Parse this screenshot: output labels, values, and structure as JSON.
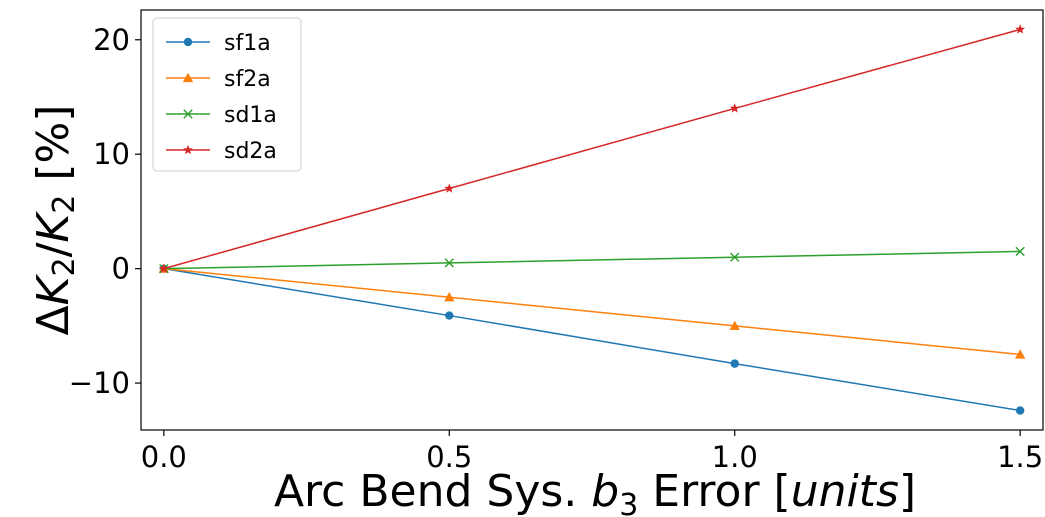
{
  "chart_data": {
    "type": "line",
    "x": [
      0.0,
      0.5,
      1.0,
      1.5
    ],
    "series": [
      {
        "name": "sf1a",
        "color": "#1f77b4",
        "marker": "circle",
        "values": [
          0.0,
          -4.1,
          -8.3,
          -12.4
        ]
      },
      {
        "name": "sf2a",
        "color": "#ff7f0e",
        "marker": "triangle",
        "values": [
          0.0,
          -2.5,
          -5.0,
          -7.5
        ]
      },
      {
        "name": "sd1a",
        "color": "#2ca02c",
        "marker": "x",
        "values": [
          0.0,
          0.5,
          1.0,
          1.5
        ]
      },
      {
        "name": "sd2a",
        "color": "#d62728",
        "marker": "star",
        "values": [
          0.0,
          7.0,
          14.0,
          20.9
        ]
      }
    ],
    "xlim": [
      -0.04,
      1.54
    ],
    "ylim": [
      -14.1,
      22.6
    ],
    "xticks": [
      0.0,
      0.5,
      1.0,
      1.5
    ],
    "xtick_labels": [
      "0.0",
      "0.5",
      "1.0",
      "1.5"
    ],
    "yticks": [
      -10,
      0,
      10,
      20
    ],
    "ytick_labels": [
      "−10",
      "0",
      "10",
      "20"
    ],
    "xlabel": {
      "prefix": "Arc Bend Sys. ",
      "var": "b",
      "sub": "3",
      "mid": " Error [",
      "unit": "units",
      "suffix": "]"
    },
    "ylabel": {
      "delta": "Δ",
      "var1": "K",
      "sub1": "2",
      "slash": "/",
      "var2": "K",
      "sub2": "2",
      "suffix": " [%]"
    },
    "grid": false,
    "legend": "top-left"
  }
}
